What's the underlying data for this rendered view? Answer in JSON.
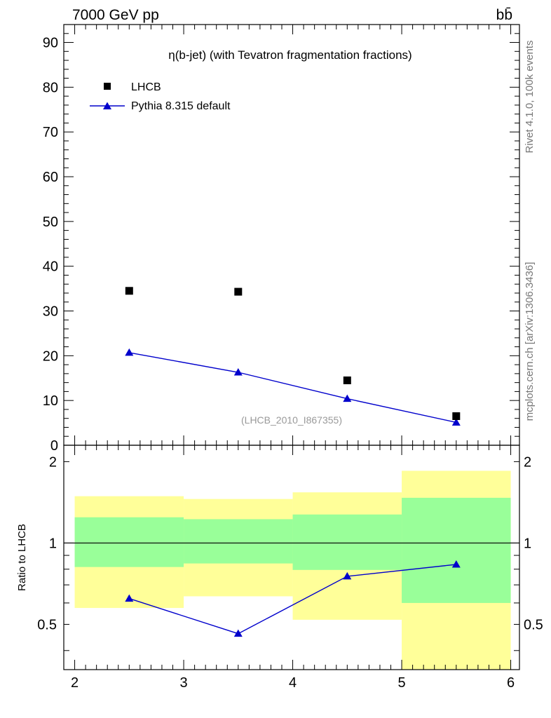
{
  "header": {
    "left_label": "7000 GeV pp",
    "right_label": "bb̄",
    "side_label_top": "Rivet 4.1.0,  100k events",
    "side_label_bottom": "mcplots.cern.ch [arXiv:1306.3436]",
    "analysis_id": "(LHCB_2010_I867355)"
  },
  "colors": {
    "mc_line": "#0000cc",
    "band_outer": "#ffff99",
    "band_inner": "#99ff99",
    "data_marker": "#000000"
  },
  "chart_data": [
    {
      "type": "scatter",
      "title": "η(b-jet) (with Tevatron fragmentation fractions)",
      "xlabel": "",
      "ylabel": "",
      "xlim": [
        1.9,
        6.08
      ],
      "ylim": [
        0,
        94
      ],
      "yticks": [
        0,
        10,
        20,
        30,
        40,
        50,
        60,
        70,
        80,
        90
      ],
      "legend": [
        {
          "label": "LHCB",
          "marker": "square"
        },
        {
          "label": "Pythia 8.315 default",
          "marker": "triangle-line"
        }
      ],
      "series": [
        {
          "name": "LHCB",
          "x": [
            2.5,
            3.5,
            4.5,
            5.5
          ],
          "values": [
            34.5,
            34.3,
            14.5,
            6.5
          ]
        },
        {
          "name": "Pythia 8.315 default",
          "x": [
            2.5,
            3.5,
            4.5,
            5.5
          ],
          "values": [
            20.7,
            16.3,
            10.4,
            5.1
          ]
        }
      ]
    },
    {
      "type": "line",
      "title": "",
      "xlabel": "",
      "ylabel": "Ratio to LHCB",
      "xlim": [
        1.9,
        6.08
      ],
      "ylim": [
        0.34,
        2.3
      ],
      "yticks_labeled": [
        "0.5",
        "1",
        "2"
      ],
      "xticks": [
        "2",
        "3",
        "4",
        "5",
        "6"
      ],
      "reference_line": 1,
      "bins": [
        {
          "lo": 2,
          "hi": 3,
          "outer": [
            0.575,
            1.49
          ],
          "inner": [
            0.815,
            1.245
          ]
        },
        {
          "lo": 3,
          "hi": 4,
          "outer": [
            0.635,
            1.455
          ],
          "inner": [
            0.84,
            1.225
          ]
        },
        {
          "lo": 4,
          "hi": 5,
          "outer": [
            0.52,
            1.54
          ],
          "inner": [
            0.795,
            1.275
          ]
        },
        {
          "lo": 5,
          "hi": 6,
          "outer": [
            0.34,
            1.85
          ],
          "inner": [
            0.6,
            1.47
          ]
        }
      ],
      "series": [
        {
          "name": "Pythia 8.315 default",
          "x": [
            2.5,
            3.5,
            4.5,
            5.5
          ],
          "values": [
            0.623,
            0.462,
            0.753,
            0.833
          ]
        }
      ]
    }
  ]
}
